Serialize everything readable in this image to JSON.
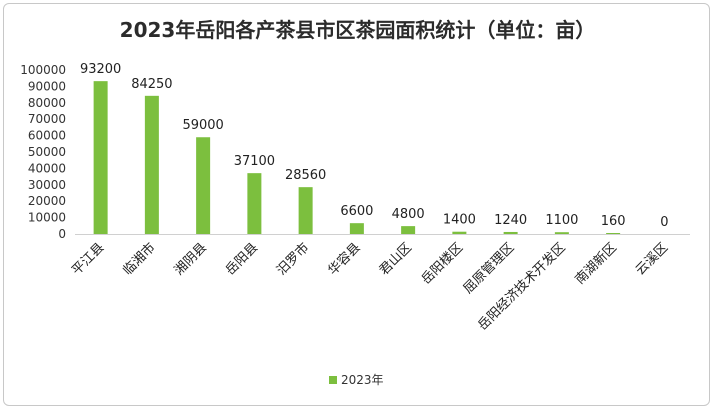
{
  "chart_data": {
    "type": "bar",
    "title": "2023年岳阳各产茶县市区茶园面积统计（单位：亩）",
    "categories": [
      "平江县",
      "临湘市",
      "湘阴县",
      "岳阳县",
      "汨罗市",
      "华容县",
      "君山区",
      "岳阳楼区",
      "屈原管理区",
      "岳阳经济技术开发区",
      "南湖新区",
      "云溪区"
    ],
    "series": [
      {
        "name": "2023年",
        "values": [
          93200,
          84250,
          59000,
          37100,
          28560,
          6600,
          4800,
          1400,
          1240,
          1100,
          160,
          0
        ],
        "color": "#7cbf3e"
      }
    ],
    "data_labels": [
      "93200",
      "84250",
      "59000",
      "37100",
      "28560",
      "6600",
      "4800",
      "1400",
      "1240",
      "1100",
      "160",
      "0"
    ],
    "ylim": [
      0,
      100000
    ],
    "yticks": [
      0,
      10000,
      20000,
      30000,
      40000,
      50000,
      60000,
      70000,
      80000,
      90000,
      100000
    ],
    "ytick_labels": [
      "0",
      "10000",
      "20000",
      "30000",
      "40000",
      "50000",
      "60000",
      "70000",
      "80000",
      "90000",
      "100000"
    ],
    "grid": false,
    "legend": {
      "position": "bottom",
      "label": "2023年"
    },
    "xlabel": "",
    "ylabel": ""
  }
}
